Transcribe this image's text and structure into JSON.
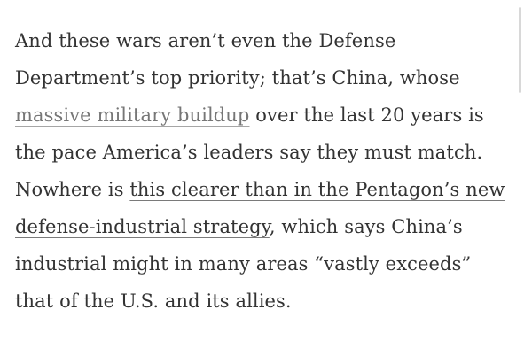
{
  "page": {
    "background": "#ffffff",
    "body_text_color": "#333333",
    "muted_link_color": "#767676",
    "muted_link_underline_color": "#a6a6a6",
    "dark_link_underline_color": "#7a7a7a",
    "scrollbar_color": "#d8d8d8"
  },
  "article": {
    "paragraph_text": "And these wars aren’t even the Defense Department’s top priority; that’s China, whose massive military buildup over the last 20 years is the pace America’s leaders say they must match. Nowhere is this clearer than in the Pentagon’s new defense-industrial strategy, which says China’s industrial might in many areas “vastly exceeds” that of the U.S. and its allies.",
    "links": [
      {
        "text": "massive military buildup",
        "style": "muted"
      },
      {
        "text": "this clearer than in the Pentagon’s new defense-industrial strategy",
        "style": "dark"
      }
    ],
    "lines": [
      {
        "segments": [
          {
            "text": "And these wars aren’t even the Defense",
            "link": null
          }
        ]
      },
      {
        "segments": [
          {
            "text": "Department’s top priority; that’s China, whose",
            "link": null
          }
        ]
      },
      {
        "segments": [
          {
            "text": "massive military buildup",
            "link": "muted"
          },
          {
            "text": " over the last 20 years is",
            "link": null
          }
        ]
      },
      {
        "segments": [
          {
            "text": "the pace America’s leaders say they must match.",
            "link": null
          }
        ]
      },
      {
        "segments": [
          {
            "text": "Nowhere is ",
            "link": null
          },
          {
            "text": "this clearer than in the Pentagon’s new",
            "link": "dark"
          }
        ]
      },
      {
        "segments": [
          {
            "text": "defense-industrial strategy",
            "link": "dark"
          },
          {
            "text": ", which says China’s",
            "link": null
          }
        ]
      },
      {
        "segments": [
          {
            "text": "industrial might in many areas “vastly exceeds”",
            "link": null
          }
        ]
      },
      {
        "segments": [
          {
            "text": "that of the U.S. and its allies.",
            "link": null
          }
        ]
      }
    ]
  },
  "scrollbar": {
    "visible": true
  }
}
